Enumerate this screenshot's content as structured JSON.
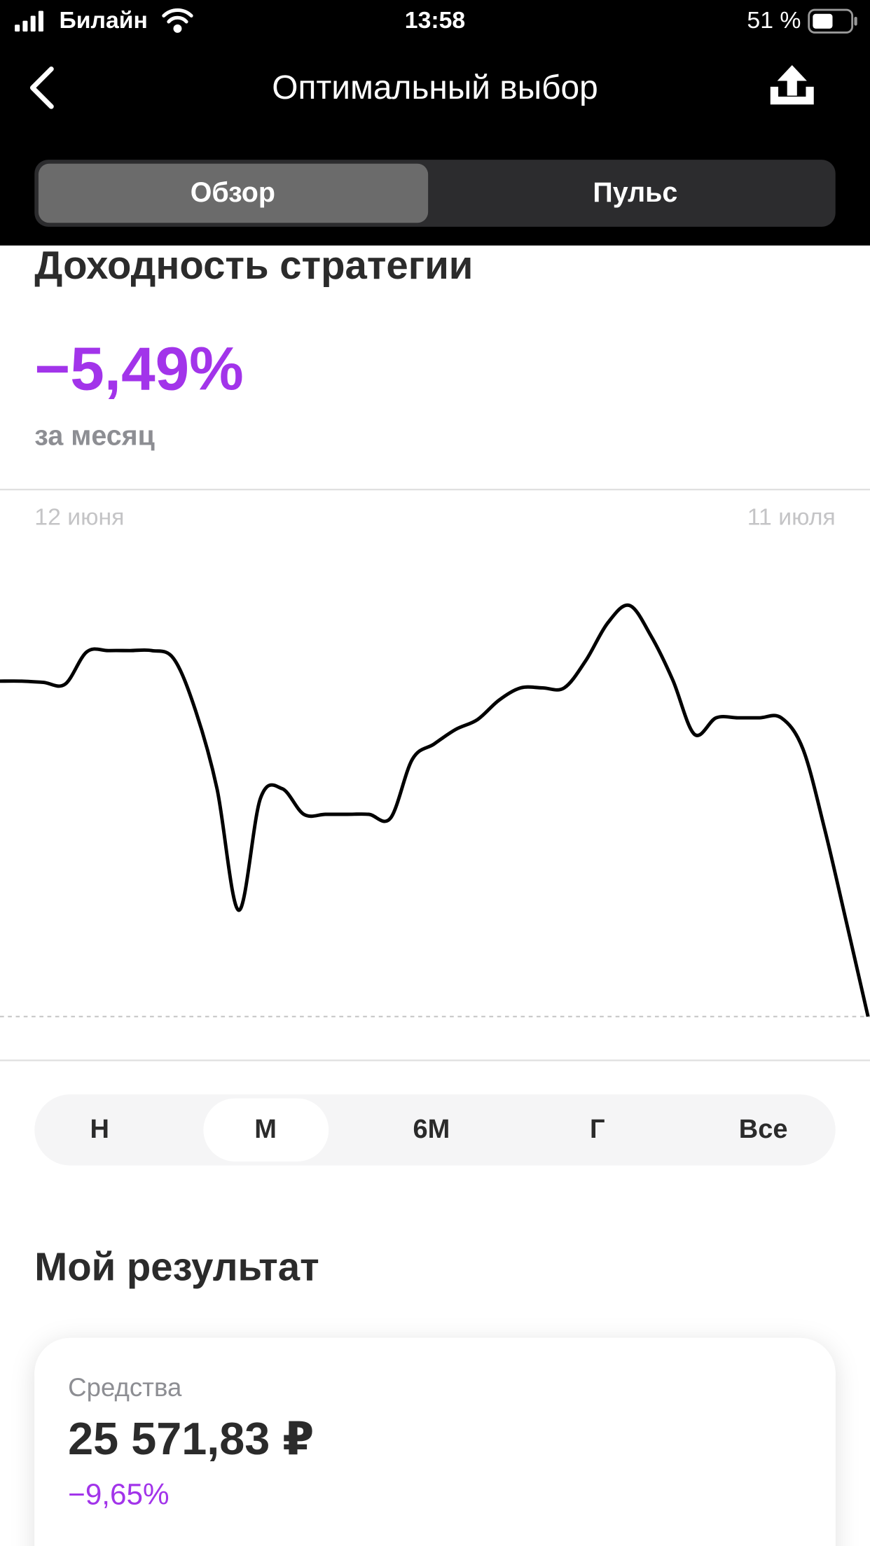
{
  "status_bar": {
    "carrier": "Билайн",
    "time": "13:58",
    "battery": "51 %"
  },
  "header": {
    "title": "Оптимальный выбор"
  },
  "tabs": [
    "Обзор",
    "Пульс"
  ],
  "strategy": {
    "title": "Доходность стратегии",
    "return": "−5,49%",
    "period": "за месяц"
  },
  "chart_data": {
    "type": "line",
    "color": "#000000",
    "categories": [
      "12 июня",
      null,
      null,
      null,
      null,
      null,
      null,
      null,
      null,
      null,
      null,
      null,
      null,
      null,
      null,
      null,
      null,
      null,
      null,
      null,
      null,
      null,
      null,
      null,
      null,
      null,
      null,
      null,
      null,
      null,
      null,
      null,
      null,
      null,
      null,
      null,
      null,
      null,
      null,
      null,
      "11 июля"
    ],
    "values": [
      0,
      0,
      -0.02,
      -0.05,
      0.48,
      0.5,
      0.5,
      0.5,
      0.37,
      -0.47,
      -1.76,
      -3.75,
      -1.92,
      -1.76,
      -2.18,
      -2.18,
      -2.18,
      -2.18,
      -2.24,
      -1.28,
      -1.03,
      -0.79,
      -0.63,
      -0.31,
      -0.11,
      -0.11,
      -0.11,
      0.34,
      0.95,
      1.24,
      0.74,
      0.02,
      -0.87,
      -0.6,
      -0.6,
      -0.6,
      -0.6,
      -1.11,
      -2.42,
      -3.94,
      -5.49
    ]
  },
  "periods": {
    "items": [
      "Н",
      "М",
      "6М",
      "Г",
      "Все"
    ],
    "selected": 1
  },
  "result": {
    "title": "Мой результат",
    "label": "Средства",
    "amount": "25 571,83 ₽",
    "change": "−9,65%"
  }
}
